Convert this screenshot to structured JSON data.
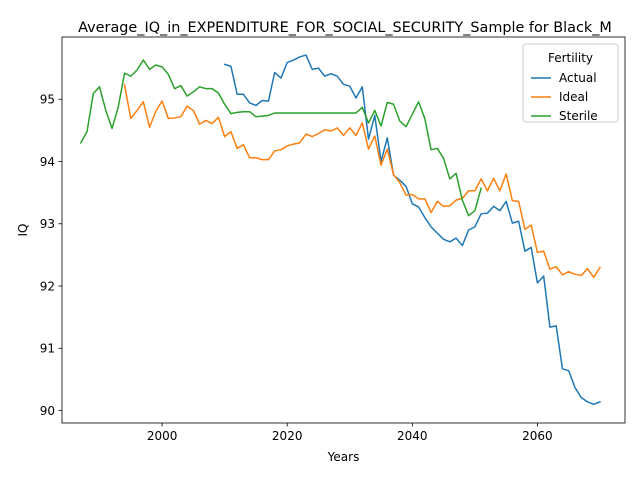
{
  "chart_data": {
    "type": "line",
    "title": "Average_IQ_in_EXPENDITURE_FOR_SOCIAL_SECURITY_Sample for Black_M",
    "xlabel": "Years",
    "ylabel": "IQ",
    "xlim": [
      1984,
      2074
    ],
    "ylim": [
      89.8,
      96.0
    ],
    "xticks": [
      2000,
      2020,
      2040,
      2060
    ],
    "yticks": [
      90,
      91,
      92,
      93,
      94,
      95
    ],
    "grid": false,
    "legend": {
      "title": "Fertility",
      "placement": "top-right"
    },
    "series": [
      {
        "name": "Actual",
        "color": "#1f77b4",
        "x": [
          2010,
          2011,
          2012,
          2013,
          2014,
          2015,
          2016,
          2017,
          2018,
          2019,
          2020,
          2021,
          2022,
          2023,
          2024,
          2025,
          2026,
          2027,
          2028,
          2029,
          2030,
          2031,
          2032,
          2033,
          2034,
          2035,
          2036,
          2037,
          2038,
          2039,
          2040,
          2041,
          2042,
          2043,
          2044,
          2045,
          2046,
          2047,
          2048,
          2049,
          2050,
          2051,
          2052,
          2053,
          2054,
          2055,
          2056,
          2057,
          2058,
          2059,
          2060,
          2061,
          2062,
          2063,
          2064,
          2065,
          2066,
          2067,
          2068,
          2069,
          2070
        ],
        "y": [
          95.56,
          95.53,
          95.08,
          95.08,
          94.94,
          94.9,
          94.98,
          94.97,
          95.43,
          95.34,
          95.59,
          95.63,
          95.68,
          95.71,
          95.48,
          95.5,
          95.37,
          95.41,
          95.37,
          95.24,
          95.21,
          95.02,
          95.2,
          94.36,
          94.74,
          94.0,
          94.38,
          93.78,
          93.7,
          93.6,
          93.32,
          93.27,
          93.1,
          92.95,
          92.85,
          92.75,
          92.71,
          92.77,
          92.65,
          92.9,
          92.95,
          93.16,
          93.17,
          93.28,
          93.21,
          93.36,
          93.01,
          93.04,
          92.56,
          92.62,
          92.05,
          92.16,
          91.34,
          91.36,
          90.67,
          90.64,
          90.37,
          90.21,
          90.14,
          90.1,
          90.14
        ]
      },
      {
        "name": "Ideal",
        "color": "#ff7f0e",
        "x": [
          1994,
          1995,
          1996,
          1997,
          1998,
          1999,
          2000,
          2001,
          2002,
          2003,
          2004,
          2005,
          2006,
          2007,
          2008,
          2009,
          2010,
          2011,
          2012,
          2013,
          2014,
          2015,
          2016,
          2017,
          2018,
          2019,
          2020,
          2021,
          2022,
          2023,
          2024,
          2025,
          2026,
          2027,
          2028,
          2029,
          2030,
          2031,
          2032,
          2033,
          2034,
          2035,
          2036,
          2037,
          2038,
          2039,
          2040,
          2041,
          2042,
          2043,
          2044,
          2045,
          2046,
          2047,
          2048,
          2049,
          2050,
          2051,
          2052,
          2053,
          2054,
          2055,
          2056,
          2057,
          2058,
          2059,
          2060,
          2061,
          2062,
          2063,
          2064,
          2065,
          2066,
          2067,
          2068,
          2069,
          2070
        ],
        "y": [
          95.23,
          94.69,
          94.82,
          94.96,
          94.55,
          94.81,
          94.97,
          94.69,
          94.7,
          94.72,
          94.89,
          94.82,
          94.6,
          94.66,
          94.61,
          94.71,
          94.4,
          94.48,
          94.21,
          94.27,
          94.06,
          94.06,
          94.03,
          94.03,
          94.17,
          94.19,
          94.25,
          94.28,
          94.3,
          94.44,
          94.4,
          94.45,
          94.51,
          94.49,
          94.54,
          94.42,
          94.54,
          94.42,
          94.62,
          94.2,
          94.41,
          93.94,
          94.2,
          93.79,
          93.66,
          93.46,
          93.47,
          93.4,
          93.4,
          93.18,
          93.36,
          93.28,
          93.29,
          93.38,
          93.41,
          93.53,
          93.53,
          93.72,
          93.53,
          93.73,
          93.53,
          93.8,
          93.37,
          93.36,
          92.91,
          92.98,
          92.54,
          92.56,
          92.27,
          92.31,
          92.18,
          92.23,
          92.19,
          92.17,
          92.28,
          92.14,
          92.3
        ]
      },
      {
        "name": "Sterile",
        "color": "#2ca02c",
        "x": [
          1987,
          1988,
          1989,
          1990,
          1991,
          1992,
          1993,
          1994,
          1995,
          1996,
          1997,
          1998,
          1999,
          2000,
          2001,
          2002,
          2003,
          2004,
          2005,
          2006,
          2007,
          2008,
          2009,
          2010,
          2011,
          2012,
          2013,
          2014,
          2015,
          2016,
          2017,
          2018,
          2019,
          2020,
          2021,
          2022,
          2023,
          2024,
          2025,
          2026,
          2027,
          2028,
          2029,
          2030,
          2031,
          2032,
          2033,
          2034,
          2035,
          2036,
          2037,
          2038,
          2039,
          2040,
          2041,
          2042,
          2043,
          2044,
          2045,
          2046,
          2047,
          2048,
          2049,
          2050,
          2051
        ],
        "y": [
          94.3,
          94.48,
          95.09,
          95.2,
          94.82,
          94.53,
          94.88,
          95.42,
          95.37,
          95.47,
          95.63,
          95.48,
          95.55,
          95.52,
          95.4,
          95.17,
          95.22,
          95.05,
          95.12,
          95.2,
          95.17,
          95.17,
          95.1,
          94.92,
          94.77,
          94.79,
          94.8,
          94.8,
          94.72,
          94.73,
          94.74,
          94.78,
          94.78,
          94.78,
          94.78,
          94.78,
          94.78,
          94.78,
          94.78,
          94.78,
          94.78,
          94.78,
          94.78,
          94.78,
          94.78,
          94.87,
          94.62,
          94.82,
          94.57,
          94.95,
          94.92,
          94.65,
          94.56,
          94.76,
          94.96,
          94.69,
          94.19,
          94.21,
          94.05,
          93.72,
          93.81,
          93.38,
          93.13,
          93.21,
          93.57
        ]
      }
    ]
  }
}
